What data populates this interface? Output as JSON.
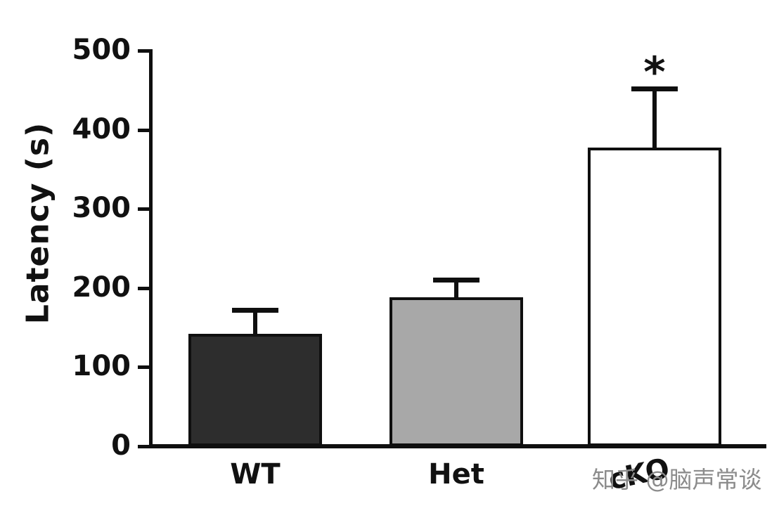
{
  "chart_data": {
    "type": "bar",
    "title": "",
    "ylabel": "Latency (s)",
    "xlabel": "",
    "ylim": [
      0,
      500
    ],
    "yticks": [
      0,
      100,
      200,
      300,
      400,
      500
    ],
    "categories": [
      "WT",
      "Het",
      "cKO"
    ],
    "values": [
      142,
      188,
      377
    ],
    "errors_plus": [
      33,
      25,
      78
    ],
    "error_bar_tops": [
      175,
      213,
      455
    ],
    "bar_colors": [
      "#2d2d2d",
      "#a8a8a8",
      "#ffffff"
    ],
    "bar_border_color": "#0f0f0f",
    "axis_color": "#0f0f0f",
    "significance": [
      "",
      "",
      "*"
    ],
    "xtick_rotation": [
      0,
      0,
      -12
    ],
    "grid": false,
    "legend": "none"
  },
  "watermark": {
    "text": "知乎 @脑声常谈",
    "color": "#8c8c8c"
  }
}
